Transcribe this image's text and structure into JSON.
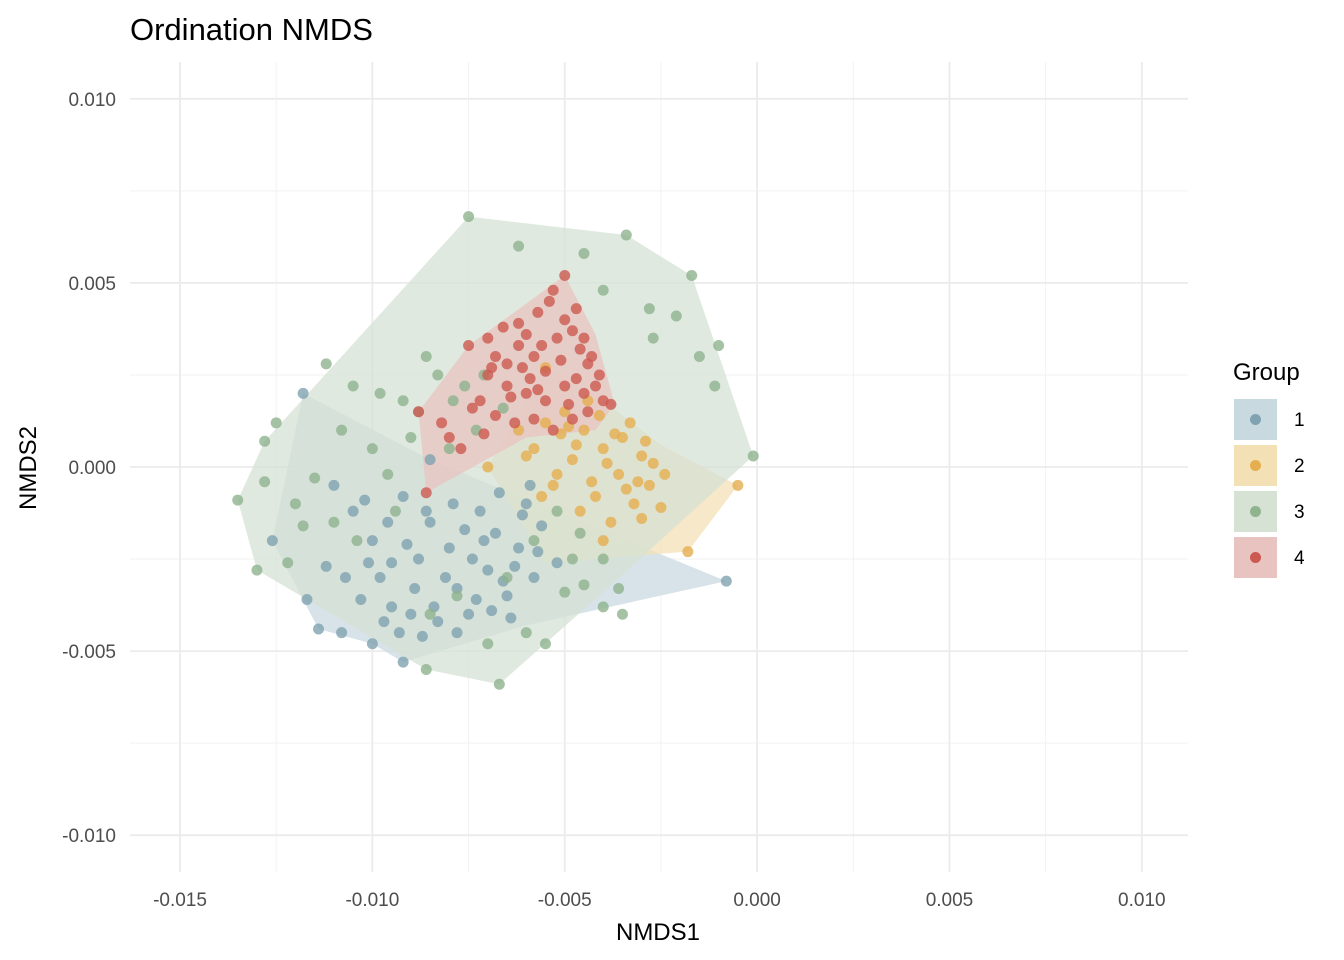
{
  "chart_data": {
    "type": "scatter",
    "title": "Ordination NMDS",
    "xlabel": "NMDS1",
    "ylabel": "NMDS2",
    "xlim": [
      -0.0163,
      0.0112
    ],
    "ylim": [
      -0.011,
      0.011
    ],
    "x_ticks": [
      -0.015,
      -0.01,
      -0.005,
      0.0,
      0.005,
      0.01
    ],
    "x_tick_labels": [
      "-0.015",
      "-0.010",
      "-0.005",
      "0.000",
      "0.005",
      "0.010"
    ],
    "y_ticks": [
      -0.01,
      -0.005,
      0.0,
      0.005,
      0.01
    ],
    "y_tick_labels": [
      "-0.010",
      "-0.005",
      "0.000",
      "0.005",
      "0.010"
    ],
    "grid": true,
    "legend": {
      "title": "Group",
      "position": "right"
    },
    "series": [
      {
        "name": "1",
        "color": "#7FA3B0",
        "fill": "#C9D9E0",
        "hull": [
          [
            -0.0118,
            0.002
          ],
          [
            -0.0085,
            0.0002
          ],
          [
            -0.0008,
            -0.0031
          ],
          [
            -0.006,
            -0.0043
          ],
          [
            -0.0092,
            -0.0053
          ],
          [
            -0.01,
            -0.0048
          ],
          [
            -0.0114,
            -0.0044
          ],
          [
            -0.0126,
            -0.002
          ]
        ],
        "points": [
          [
            -0.0118,
            0.002
          ],
          [
            -0.0126,
            -0.002
          ],
          [
            -0.0117,
            -0.0036
          ],
          [
            -0.0114,
            -0.0044
          ],
          [
            -0.0108,
            -0.0045
          ],
          [
            -0.01,
            -0.0048
          ],
          [
            -0.0092,
            -0.0053
          ],
          [
            -0.0008,
            -0.0031
          ],
          [
            -0.0085,
            0.0002
          ],
          [
            -0.011,
            -0.0005
          ],
          [
            -0.0105,
            -0.0012
          ],
          [
            -0.01,
            -0.002
          ],
          [
            -0.0098,
            -0.003
          ],
          [
            -0.0095,
            -0.0038
          ],
          [
            -0.009,
            -0.004
          ],
          [
            -0.0088,
            -0.0025
          ],
          [
            -0.0085,
            -0.0015
          ],
          [
            -0.008,
            -0.0022
          ],
          [
            -0.0078,
            -0.0033
          ],
          [
            -0.0075,
            -0.004
          ],
          [
            -0.0072,
            -0.0012
          ],
          [
            -0.007,
            -0.0028
          ],
          [
            -0.0068,
            -0.0018
          ],
          [
            -0.0065,
            -0.0035
          ],
          [
            -0.0062,
            -0.0022
          ],
          [
            -0.006,
            -0.001
          ],
          [
            -0.0058,
            -0.003
          ],
          [
            -0.0056,
            -0.0016
          ],
          [
            -0.0052,
            -0.0026
          ],
          [
            -0.0093,
            -0.0045
          ],
          [
            -0.0103,
            -0.0036
          ],
          [
            -0.0107,
            -0.003
          ],
          [
            -0.0096,
            -0.0015
          ],
          [
            -0.0092,
            -0.0008
          ],
          [
            -0.0089,
            -0.0033
          ],
          [
            -0.0083,
            -0.0042
          ],
          [
            -0.0079,
            -0.001
          ],
          [
            -0.0074,
            -0.0025
          ],
          [
            -0.0069,
            -0.0039
          ],
          [
            -0.0064,
            -0.0041
          ],
          [
            -0.0061,
            -0.0013
          ],
          [
            -0.0057,
            -0.0023
          ],
          [
            -0.0067,
            -0.0007
          ],
          [
            -0.0097,
            -0.0042
          ],
          [
            -0.0087,
            -0.0046
          ],
          [
            -0.0101,
            -0.0026
          ],
          [
            -0.0081,
            -0.003
          ],
          [
            -0.0071,
            -0.002
          ],
          [
            -0.0066,
            -0.0031
          ],
          [
            -0.0076,
            -0.0017
          ],
          [
            -0.0091,
            -0.0021
          ],
          [
            -0.0084,
            -0.0038
          ],
          [
            -0.0102,
            -0.0009
          ],
          [
            -0.0112,
            -0.0027
          ],
          [
            -0.0073,
            -0.0036
          ],
          [
            -0.0063,
            -0.0027
          ],
          [
            -0.0059,
            -0.0005
          ],
          [
            -0.0086,
            -0.0012
          ],
          [
            -0.0095,
            -0.0026
          ],
          [
            -0.0078,
            -0.0045
          ]
        ]
      },
      {
        "name": "2",
        "color": "#E5AE4F",
        "fill": "#F3E0B5",
        "hull": [
          [
            -0.0055,
            0.0027
          ],
          [
            -0.0045,
            0.0022
          ],
          [
            -0.0025,
            0.0006
          ],
          [
            -0.0005,
            -0.0005
          ],
          [
            -0.0018,
            -0.0023
          ],
          [
            -0.0055,
            -0.0026
          ],
          [
            -0.007,
            0.0
          ]
        ],
        "points": [
          [
            -0.0005,
            -0.0005
          ],
          [
            -0.0018,
            -0.0023
          ],
          [
            -0.0055,
            0.0027
          ],
          [
            -0.007,
            0.0
          ],
          [
            -0.005,
            0.0015
          ],
          [
            -0.0045,
            0.001
          ],
          [
            -0.004,
            0.0005
          ],
          [
            -0.0035,
            0.0008
          ],
          [
            -0.003,
            0.0003
          ],
          [
            -0.0028,
            -0.0005
          ],
          [
            -0.0032,
            -0.001
          ],
          [
            -0.0036,
            -0.0002
          ],
          [
            -0.0042,
            -0.0008
          ],
          [
            -0.0048,
            0.0002
          ],
          [
            -0.0053,
            -0.0005
          ],
          [
            -0.0058,
            0.0005
          ],
          [
            -0.0062,
            0.001
          ],
          [
            -0.0025,
            -0.0011
          ],
          [
            -0.0038,
            -0.0015
          ],
          [
            -0.0044,
            0.0018
          ],
          [
            -0.0033,
            0.0012
          ],
          [
            -0.0029,
            0.0007
          ],
          [
            -0.0046,
            -0.0012
          ],
          [
            -0.0051,
            0.0009
          ],
          [
            -0.0055,
            0.0012
          ],
          [
            -0.0039,
            0.0001
          ],
          [
            -0.0034,
            -0.0006
          ],
          [
            -0.0027,
            0.0001
          ],
          [
            -0.0041,
            0.0014
          ],
          [
            -0.0047,
            0.0006
          ],
          [
            -0.0052,
            -0.0002
          ],
          [
            -0.0031,
            -0.0004
          ],
          [
            -0.0037,
            0.0009
          ],
          [
            -0.0043,
            -0.0004
          ],
          [
            -0.0049,
            0.0011
          ],
          [
            -0.0056,
            -0.0008
          ],
          [
            -0.004,
            -0.002
          ],
          [
            -0.0024,
            -0.0002
          ],
          [
            -0.006,
            0.0003
          ],
          [
            -0.003,
            -0.0014
          ]
        ]
      },
      {
        "name": "3",
        "color": "#8FB38E",
        "fill": "#D5E2D4",
        "hull": [
          [
            -0.0075,
            0.0068
          ],
          [
            -0.0034,
            0.0063
          ],
          [
            -0.0017,
            0.0052
          ],
          [
            -0.0001,
            0.0003
          ],
          [
            -0.004,
            -0.0034
          ],
          [
            -0.0067,
            -0.0059
          ],
          [
            -0.0086,
            -0.0055
          ],
          [
            -0.013,
            -0.0028
          ],
          [
            -0.0135,
            -0.0009
          ],
          [
            -0.0128,
            0.0007
          ]
        ],
        "points": [
          [
            -0.0075,
            0.0068
          ],
          [
            -0.0034,
            0.0063
          ],
          [
            -0.0017,
            0.0052
          ],
          [
            -0.0001,
            0.0003
          ],
          [
            -0.0067,
            -0.0059
          ],
          [
            -0.0086,
            -0.0055
          ],
          [
            -0.013,
            -0.0028
          ],
          [
            -0.0135,
            -0.0009
          ],
          [
            -0.0128,
            0.0007
          ],
          [
            -0.0112,
            0.0028
          ],
          [
            -0.0105,
            0.0022
          ],
          [
            -0.0098,
            0.002
          ],
          [
            -0.0092,
            0.0018
          ],
          [
            -0.0088,
            0.0015
          ],
          [
            -0.0083,
            0.0025
          ],
          [
            -0.0076,
            0.0022
          ],
          [
            -0.0062,
            0.006
          ],
          [
            -0.0045,
            0.0058
          ],
          [
            -0.004,
            0.0048
          ],
          [
            -0.0028,
            0.0043
          ],
          [
            -0.0021,
            0.0041
          ],
          [
            -0.0027,
            0.0035
          ],
          [
            -0.0015,
            0.003
          ],
          [
            -0.0011,
            0.0022
          ],
          [
            -0.001,
            0.0033
          ],
          [
            -0.012,
            -0.001
          ],
          [
            -0.0115,
            -0.0003
          ],
          [
            -0.011,
            -0.0015
          ],
          [
            -0.0122,
            -0.0026
          ],
          [
            -0.0128,
            -0.0004
          ],
          [
            -0.0125,
            0.0012
          ],
          [
            -0.0108,
            0.001
          ],
          [
            -0.01,
            0.0005
          ],
          [
            -0.0096,
            -0.0002
          ],
          [
            -0.009,
            0.0008
          ],
          [
            -0.008,
            0.0005
          ],
          [
            -0.0073,
            0.001
          ],
          [
            -0.0065,
            -0.003
          ],
          [
            -0.006,
            -0.0045
          ],
          [
            -0.0055,
            -0.0048
          ],
          [
            -0.005,
            -0.0034
          ],
          [
            -0.0045,
            -0.0032
          ],
          [
            -0.004,
            -0.0038
          ],
          [
            -0.0035,
            -0.004
          ],
          [
            -0.0048,
            -0.0025
          ],
          [
            -0.0058,
            -0.002
          ],
          [
            -0.0085,
            -0.004
          ],
          [
            -0.0078,
            -0.0035
          ],
          [
            -0.007,
            -0.0048
          ],
          [
            -0.0118,
            -0.0016
          ],
          [
            -0.0104,
            -0.002
          ],
          [
            -0.0094,
            -0.0012
          ],
          [
            -0.0066,
            0.0016
          ],
          [
            -0.0071,
            0.0025
          ],
          [
            -0.0079,
            0.0018
          ],
          [
            -0.0052,
            -0.0012
          ],
          [
            -0.0046,
            -0.0018
          ],
          [
            -0.004,
            -0.0025
          ],
          [
            -0.0036,
            -0.0033
          ],
          [
            -0.0086,
            0.003
          ]
        ]
      },
      {
        "name": "4",
        "color": "#CC5A50",
        "fill": "#E9C3C0",
        "hull": [
          [
            -0.005,
            0.0052
          ],
          [
            -0.0042,
            0.0036
          ],
          [
            -0.0037,
            0.0017
          ],
          [
            -0.0042,
            0.001
          ],
          [
            -0.006,
            0.0008
          ],
          [
            -0.0086,
            -0.0007
          ],
          [
            -0.0088,
            0.0015
          ],
          [
            -0.0075,
            0.0033
          ]
        ],
        "points": [
          [
            -0.005,
            0.0052
          ],
          [
            -0.0088,
            0.0015
          ],
          [
            -0.0086,
            -0.0007
          ],
          [
            -0.0075,
            0.0033
          ],
          [
            -0.007,
            0.0035
          ],
          [
            -0.0068,
            0.003
          ],
          [
            -0.0065,
            0.0028
          ],
          [
            -0.0062,
            0.0033
          ],
          [
            -0.006,
            0.0036
          ],
          [
            -0.0058,
            0.003
          ],
          [
            -0.0055,
            0.0026
          ],
          [
            -0.0052,
            0.0035
          ],
          [
            -0.005,
            0.004
          ],
          [
            -0.0048,
            0.0037
          ],
          [
            -0.0046,
            0.0032
          ],
          [
            -0.0044,
            0.0028
          ],
          [
            -0.0042,
            0.0022
          ],
          [
            -0.004,
            0.0018
          ],
          [
            -0.0045,
            0.002
          ],
          [
            -0.005,
            0.0022
          ],
          [
            -0.0055,
            0.0018
          ],
          [
            -0.006,
            0.002
          ],
          [
            -0.0065,
            0.0022
          ],
          [
            -0.007,
            0.0025
          ],
          [
            -0.0072,
            0.0018
          ],
          [
            -0.0068,
            0.0014
          ],
          [
            -0.0063,
            0.0012
          ],
          [
            -0.0058,
            0.0013
          ],
          [
            -0.0053,
            0.001
          ],
          [
            -0.0048,
            0.0013
          ],
          [
            -0.0044,
            0.0015
          ],
          [
            -0.008,
            0.0008
          ],
          [
            -0.0082,
            0.0012
          ],
          [
            -0.0077,
            0.0005
          ],
          [
            -0.0057,
            0.0042
          ],
          [
            -0.0054,
            0.0045
          ],
          [
            -0.0047,
            0.0043
          ],
          [
            -0.0043,
            0.003
          ],
          [
            -0.0038,
            0.0017
          ],
          [
            -0.0066,
            0.0038
          ],
          [
            -0.0061,
            0.0027
          ],
          [
            -0.0056,
            0.0033
          ],
          [
            -0.0051,
            0.0029
          ],
          [
            -0.0047,
            0.0024
          ],
          [
            -0.0041,
            0.0025
          ],
          [
            -0.0053,
            0.0048
          ],
          [
            -0.0059,
            0.0024
          ],
          [
            -0.0064,
            0.0019
          ],
          [
            -0.0069,
            0.0027
          ],
          [
            -0.0074,
            0.0016
          ],
          [
            -0.0049,
            0.0017
          ],
          [
            -0.0045,
            0.0035
          ],
          [
            -0.0062,
            0.0039
          ],
          [
            -0.0057,
            0.0021
          ],
          [
            -0.0071,
            0.0009
          ]
        ]
      }
    ]
  }
}
